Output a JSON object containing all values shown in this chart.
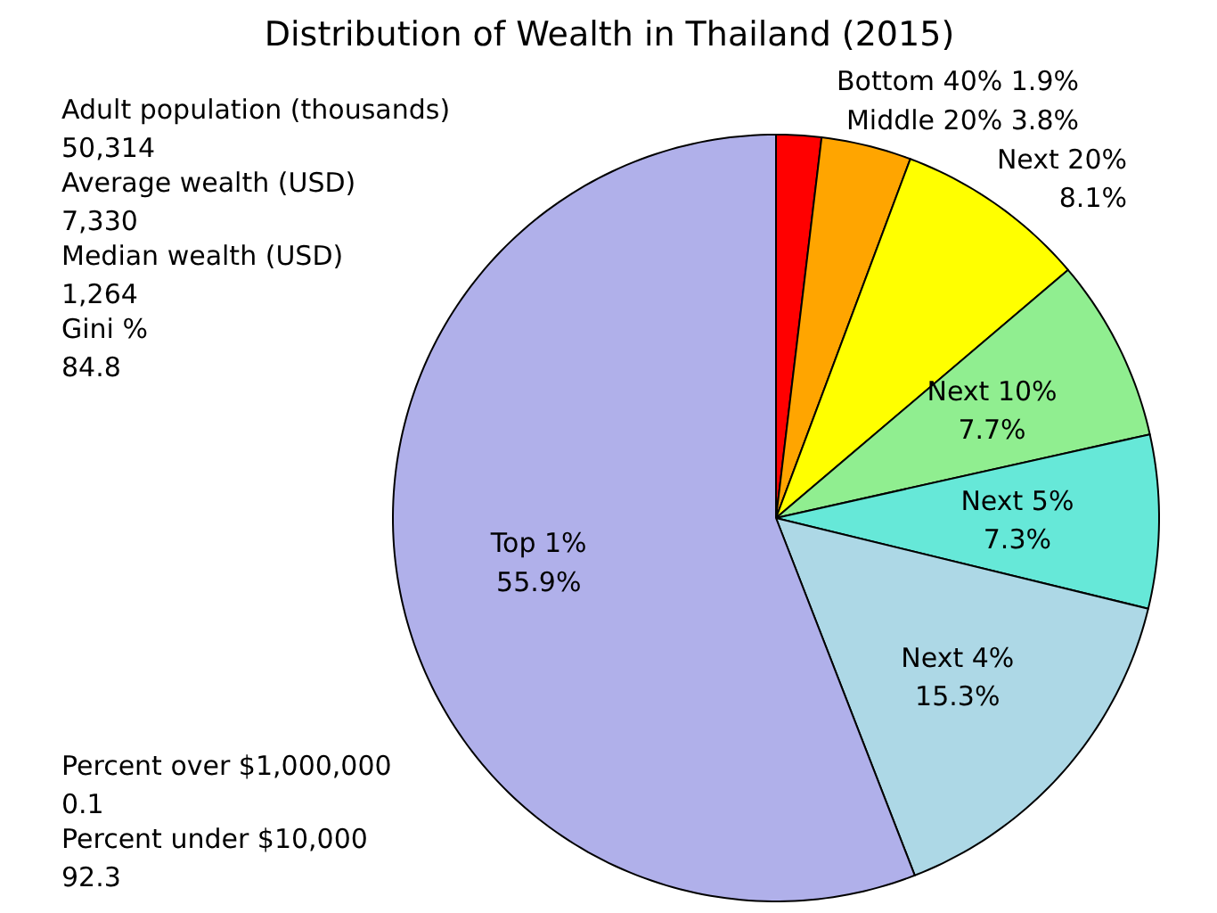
{
  "chart_data": {
    "type": "pie",
    "title": "Distribution of Wealth in Thailand (2015)",
    "categories": [
      "Bottom 40%",
      "Middle 20%",
      "Next 20%",
      "Next 10%",
      "Next 5%",
      "Next 4%",
      "Top 1%"
    ],
    "values": [
      1.9,
      3.8,
      8.1,
      7.7,
      7.3,
      15.3,
      55.9
    ],
    "colors": [
      "#ff0000",
      "#ffa500",
      "#ffff00",
      "#90ee90",
      "#66e8d8",
      "#add8e6",
      "#b0b0ea"
    ],
    "value_labels": [
      "1.9%",
      "3.8%",
      "8.1%",
      "7.7%",
      "7.3%",
      "15.3%",
      "55.9%"
    ],
    "annotations": [
      "Adult population (thousands)\n50,314",
      "Average wealth (USD)\n7,330",
      "Median wealth (USD)\n1,264",
      "Gini %\n84.8",
      "Percent over $1,000,000\n0.1",
      "Percent under $10,000\n92.3"
    ]
  }
}
